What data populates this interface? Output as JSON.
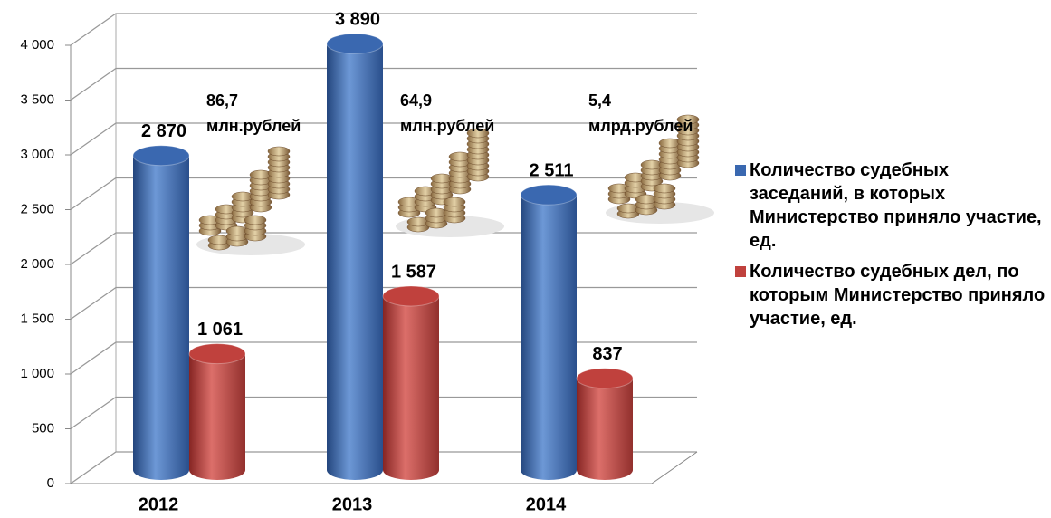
{
  "chart_data": {
    "type": "bar",
    "categories": [
      "2012",
      "2013",
      "2014"
    ],
    "series": [
      {
        "name": "Количество судебных заседаний, в которых Министерство приняло участие, ед.",
        "color": "#3a68b0",
        "values": [
          2870,
          3890,
          2511
        ],
        "value_labels": [
          "2 870",
          "3 890",
          "2 511"
        ]
      },
      {
        "name": "Количество судебных дел, по которым Министерство приняло участие, ед.",
        "color": "#c0413d",
        "values": [
          1061,
          1587,
          837
        ],
        "value_labels": [
          "1 061",
          "1 587",
          "837"
        ]
      }
    ],
    "ylim": [
      0,
      4000
    ],
    "yticks": [
      0,
      500,
      {
        "value": 1000,
        "label": "1 000"
      },
      {
        "value": 1500,
        "label": "1 500"
      },
      {
        "value": 2000,
        "label": "2 000"
      },
      {
        "value": 2500,
        "label": "2 500"
      },
      {
        "value": 3000,
        "label": "3 000"
      },
      {
        "value": 3500,
        "label": "3 500"
      },
      {
        "value": 4000,
        "label": "4 000"
      }
    ],
    "grid": true,
    "annotations": [
      {
        "amount": "86,7",
        "unit": "млн.рублей"
      },
      {
        "amount": "64,9",
        "unit": "млн.рублей"
      },
      {
        "amount": "5,4",
        "unit": "млрд.рублей"
      }
    ]
  }
}
